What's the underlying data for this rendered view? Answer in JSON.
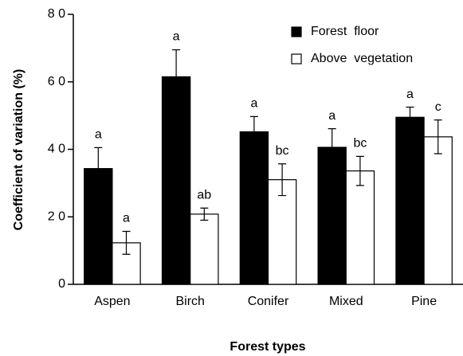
{
  "chart_data": {
    "type": "bar",
    "x_label": "Forest types",
    "y_label": "Coefficient  of  variation  (%)",
    "categories": [
      "Aspen",
      "Birch",
      "Conifer",
      "Mixed",
      "Pine"
    ],
    "series": [
      {
        "name": "Forest  floor",
        "color": "#000000",
        "values": [
          34.3,
          61.5,
          45.2,
          40.6,
          49.5
        ],
        "errors": [
          6.2,
          8,
          4.5,
          5.5,
          3
        ],
        "letters": [
          "a",
          "a",
          "a",
          "a",
          "a"
        ]
      },
      {
        "name": "Above  vegetation",
        "color": "#ffffff",
        "values": [
          12.3,
          20.8,
          31,
          33.6,
          43.7
        ],
        "errors": [
          3.4,
          1.8,
          4.7,
          4.3,
          5
        ],
        "letters": [
          "a",
          "ab",
          "bc",
          "bc",
          "c"
        ]
      }
    ],
    "ylim": [
      0,
      80
    ],
    "yticks": [
      0,
      {
        "value": 20,
        "label": "2 0"
      },
      {
        "value": 40,
        "label": "4 0"
      },
      {
        "value": 60,
        "label": "6 0"
      },
      {
        "value": 80,
        "label": "8 0"
      }
    ],
    "legend": "upper right"
  }
}
